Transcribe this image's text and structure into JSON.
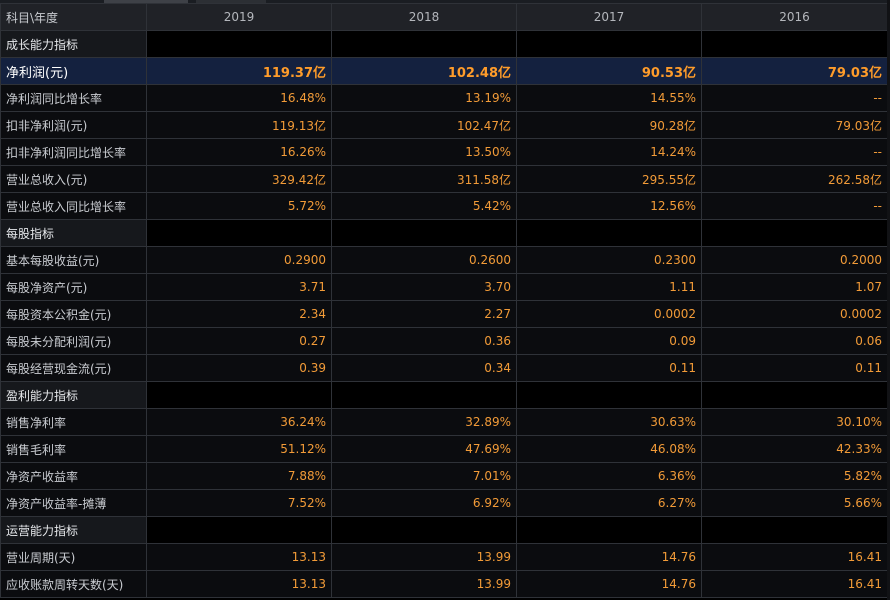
{
  "header": {
    "label": "科目\\年度",
    "years": [
      "2019",
      "2018",
      "2017",
      "2016"
    ]
  },
  "rows": [
    {
      "type": "section",
      "label": "成长能力指标",
      "values": [
        "",
        "",
        "",
        ""
      ]
    },
    {
      "type": "highlight",
      "label": "净利润(元)",
      "values": [
        "119.37亿",
        "102.48亿",
        "90.53亿",
        "79.03亿"
      ]
    },
    {
      "type": "normal",
      "label": "净利润同比增长率",
      "values": [
        "16.48%",
        "13.19%",
        "14.55%",
        "--"
      ]
    },
    {
      "type": "normal",
      "label": "扣非净利润(元)",
      "values": [
        "119.13亿",
        "102.47亿",
        "90.28亿",
        "79.03亿"
      ]
    },
    {
      "type": "normal",
      "label": "扣非净利润同比增长率",
      "values": [
        "16.26%",
        "13.50%",
        "14.24%",
        "--"
      ]
    },
    {
      "type": "normal",
      "label": "营业总收入(元)",
      "values": [
        "329.42亿",
        "311.58亿",
        "295.55亿",
        "262.58亿"
      ]
    },
    {
      "type": "normal",
      "label": "营业总收入同比增长率",
      "values": [
        "5.72%",
        "5.42%",
        "12.56%",
        "--"
      ]
    },
    {
      "type": "section",
      "label": "每股指标",
      "values": [
        "",
        "",
        "",
        ""
      ]
    },
    {
      "type": "normal",
      "label": "基本每股收益(元)",
      "values": [
        "0.2900",
        "0.2600",
        "0.2300",
        "0.2000"
      ]
    },
    {
      "type": "normal",
      "label": "每股净资产(元)",
      "values": [
        "3.71",
        "3.70",
        "1.11",
        "1.07"
      ]
    },
    {
      "type": "normal",
      "label": "每股资本公积金(元)",
      "values": [
        "2.34",
        "2.27",
        "0.0002",
        "0.0002"
      ]
    },
    {
      "type": "normal",
      "label": "每股未分配利润(元)",
      "values": [
        "0.27",
        "0.36",
        "0.09",
        "0.06"
      ]
    },
    {
      "type": "normal",
      "label": "每股经营现金流(元)",
      "values": [
        "0.39",
        "0.34",
        "0.11",
        "0.11"
      ]
    },
    {
      "type": "section",
      "label": "盈利能力指标",
      "values": [
        "",
        "",
        "",
        ""
      ]
    },
    {
      "type": "normal",
      "label": "销售净利率",
      "values": [
        "36.24%",
        "32.89%",
        "30.63%",
        "30.10%"
      ]
    },
    {
      "type": "normal",
      "label": "销售毛利率",
      "values": [
        "51.12%",
        "47.69%",
        "46.08%",
        "42.33%"
      ]
    },
    {
      "type": "normal",
      "label": "净资产收益率",
      "values": [
        "7.88%",
        "7.01%",
        "6.36%",
        "5.82%"
      ]
    },
    {
      "type": "normal",
      "label": "净资产收益率-摊薄",
      "values": [
        "7.52%",
        "6.92%",
        "6.27%",
        "5.66%"
      ]
    },
    {
      "type": "section",
      "label": "运营能力指标",
      "values": [
        "",
        "",
        "",
        ""
      ]
    },
    {
      "type": "normal",
      "label": "营业周期(天)",
      "values": [
        "13.13",
        "13.99",
        "14.76",
        "16.41"
      ]
    },
    {
      "type": "normal",
      "label": "应收账款周转天数(天)",
      "values": [
        "13.13",
        "13.99",
        "14.76",
        "16.41"
      ]
    }
  ],
  "colors": {
    "value": "#f29b38",
    "highlight_row": "#14213f",
    "header_bg": "#202227",
    "grid": "#2f3238"
  }
}
